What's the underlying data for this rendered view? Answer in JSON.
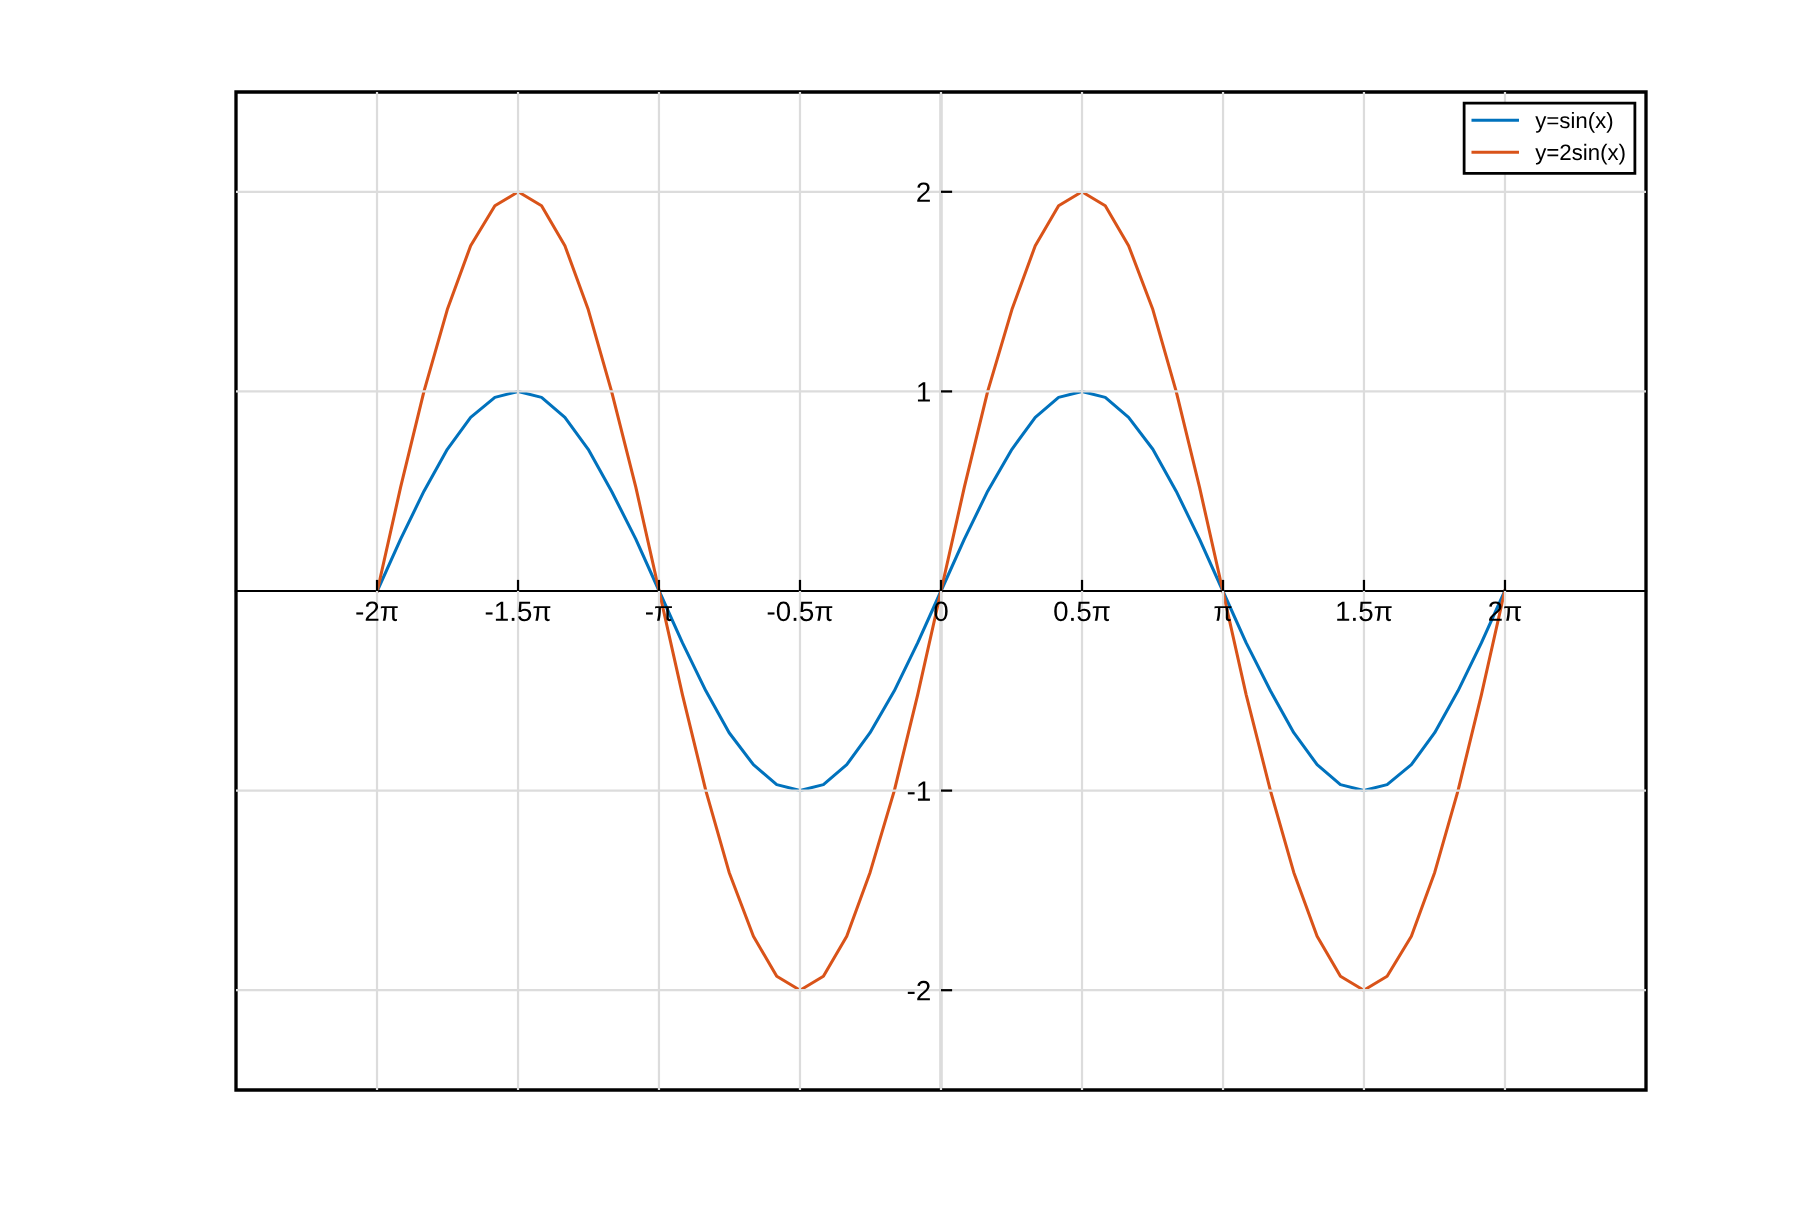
{
  "chart_data": {
    "type": "line",
    "x": [
      -6.28,
      -6.02,
      -5.76,
      -5.5,
      -5.24,
      -4.97,
      -4.71,
      -4.45,
      -4.19,
      -3.93,
      -3.67,
      -3.4,
      -3.14,
      -2.88,
      -2.62,
      -2.36,
      -2.09,
      -1.83,
      -1.57,
      -1.31,
      -1.05,
      -0.79,
      -0.52,
      -0.26,
      0,
      0.26,
      0.52,
      0.79,
      1.05,
      1.31,
      1.57,
      1.83,
      2.09,
      2.36,
      2.62,
      2.88,
      3.14,
      3.4,
      3.67,
      3.93,
      4.19,
      4.45,
      4.71,
      4.97,
      5.24,
      5.5,
      5.76,
      6.02,
      6.28
    ],
    "series": [
      {
        "name": "y=sin(x)",
        "color": "#0072bd",
        "values": [
          0,
          0.26,
          0.5,
          0.71,
          0.87,
          0.97,
          1,
          0.97,
          0.87,
          0.71,
          0.5,
          0.26,
          0,
          -0.26,
          -0.5,
          -0.71,
          -0.87,
          -0.97,
          -1,
          -0.97,
          -0.87,
          -0.71,
          -0.5,
          -0.26,
          0,
          0.26,
          0.5,
          0.71,
          0.87,
          0.97,
          1,
          0.97,
          0.87,
          0.71,
          0.5,
          0.26,
          0,
          -0.26,
          -0.5,
          -0.71,
          -0.87,
          -0.97,
          -1,
          -0.97,
          -0.87,
          -0.71,
          -0.5,
          -0.26,
          0
        ]
      },
      {
        "name": "y=2sin(x)",
        "color": "#d95319",
        "values": [
          0,
          0.52,
          1,
          1.41,
          1.73,
          1.93,
          2,
          1.93,
          1.73,
          1.41,
          1,
          0.52,
          0,
          -0.52,
          -1,
          -1.41,
          -1.73,
          -1.93,
          -2,
          -1.93,
          -1.73,
          -1.41,
          -1,
          -0.52,
          0,
          0.52,
          1,
          1.41,
          1.73,
          1.93,
          2,
          1.93,
          1.73,
          1.41,
          1,
          0.52,
          0,
          -0.52,
          -1,
          -1.41,
          -1.73,
          -1.93,
          -2,
          -1.93,
          -1.73,
          -1.41,
          -1,
          -0.52,
          0
        ]
      }
    ],
    "xlim": [
      -7.854,
      7.854
    ],
    "ylim": [
      -2.5,
      2.5
    ],
    "xticks": [
      {
        "value": -6.283,
        "label": "-2π"
      },
      {
        "value": -4.712,
        "label": "-1.5π"
      },
      {
        "value": -3.142,
        "label": "-π"
      },
      {
        "value": -1.571,
        "label": "-0.5π"
      },
      0,
      {
        "value": 1.571,
        "label": "0.5π"
      },
      {
        "value": 3.142,
        "label": "π"
      },
      {
        "value": 4.712,
        "label": "1.5π"
      },
      {
        "value": 6.283,
        "label": "2π"
      }
    ],
    "yticks": [
      -2,
      -1,
      1,
      2
    ],
    "grid": true,
    "legend": "top right",
    "marker": "none",
    "line_style": "solid"
  }
}
